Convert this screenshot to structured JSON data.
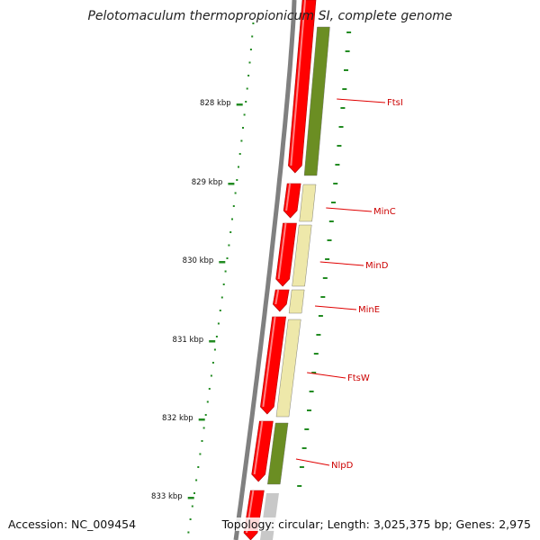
{
  "title": "Pelotomaculum thermopropionicum SI, complete genome",
  "accession": "Accession: NC_009454",
  "summary": "Topology: circular; Length: 3,025,375 bp; Genes: 2,975",
  "scale_labels": [
    "828 kbp",
    "829 kbp",
    "830 kbp",
    "831 kbp",
    "832 kbp",
    "833 kbp"
  ],
  "genes": [
    {
      "name": "FtsI",
      "forward_color": "#6b8e23"
    },
    {
      "name": "MinC",
      "forward_color": "#eee8aa"
    },
    {
      "name": "MinD",
      "forward_color": "#eee8aa"
    },
    {
      "name": "MinE",
      "forward_color": "#eee8aa"
    },
    {
      "name": "FtsW",
      "forward_color": "#eee8aa"
    },
    {
      "name": "NlpD",
      "forward_color": "#6b8e23"
    }
  ],
  "colors": {
    "reverse_strand": "#ff0000",
    "backbone": "#808080",
    "tick": "#228b22",
    "label_line": "#e00000",
    "label_text": "#cc0000"
  }
}
